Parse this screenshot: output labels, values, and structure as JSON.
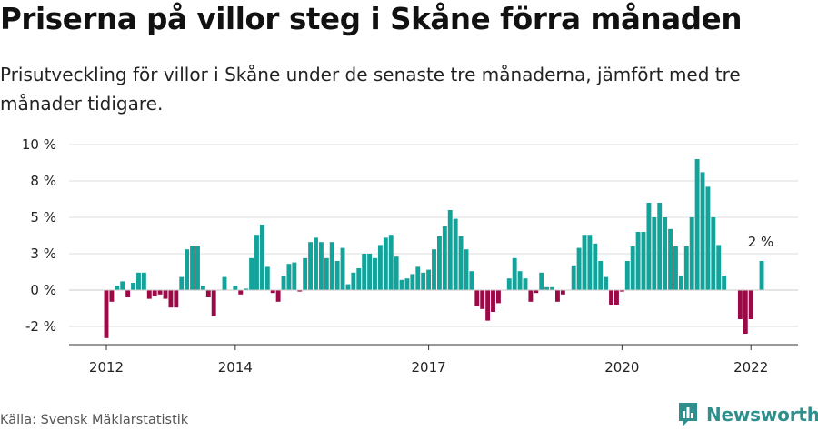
{
  "title": "Priserna på villor steg i Skåne förra månaden",
  "subtitle": "Prisutveckling för villor i Skåne under de senaste tre månaderna, jämfört med tre månader tidigare.",
  "source": "Källa: Svensk Mäklarstatistik",
  "brand": "Newsworthy",
  "colors": {
    "positive": "#13a39b",
    "negative": "#9b0a47",
    "brand": "#2f8f8c"
  },
  "chart_data": {
    "type": "bar",
    "title": "Priserna på villor steg i Skåne förra månaden",
    "subtitle": "Prisutveckling för villor i Skåne under de senaste tre månaderna, jämfört med tre månader tidigare.",
    "xlabel": "",
    "ylabel": "",
    "ylim": [
      -3.75,
      10
    ],
    "yticks": [
      -2.5,
      0,
      2.5,
      5,
      7.5,
      10
    ],
    "ytick_labels": [
      "-2 %",
      "0 %",
      "3 %",
      "5 %",
      "8 %",
      "10 %"
    ],
    "xticks": [
      {
        "label": "2012",
        "index": 0
      },
      {
        "label": "2014",
        "index": 24
      },
      {
        "label": "2017",
        "index": 60
      },
      {
        "label": "2020",
        "index": 96
      },
      {
        "label": "2022",
        "index": 120
      }
    ],
    "grid": true,
    "annotation": {
      "text": "2 %",
      "index": 122
    },
    "start_period": "2012-01",
    "values": [
      -3.3,
      -0.8,
      0.3,
      0.6,
      -0.5,
      0.5,
      1.2,
      1.2,
      -0.6,
      -0.4,
      -0.3,
      -0.6,
      -1.2,
      -1.2,
      0.9,
      2.8,
      3.0,
      3.0,
      0.3,
      -0.5,
      -1.8,
      0,
      0.9,
      0,
      0.3,
      -0.3,
      0.1,
      2.2,
      3.8,
      4.5,
      1.6,
      -0.2,
      -0.8,
      1.0,
      1.8,
      1.9,
      -0.1,
      2.2,
      3.3,
      3.6,
      3.3,
      2.2,
      3.3,
      2.0,
      2.9,
      0.4,
      1.2,
      1.5,
      2.5,
      2.5,
      2.2,
      3.1,
      3.6,
      3.8,
      2.3,
      0.7,
      0.8,
      1.1,
      1.6,
      1.2,
      1.4,
      2.8,
      3.7,
      4.4,
      5.5,
      4.9,
      3.7,
      2.8,
      1.3,
      -1.1,
      -1.3,
      -2.1,
      -1.5,
      -0.9,
      0,
      0.8,
      2.2,
      1.3,
      0.8,
      -0.8,
      -0.2,
      1.2,
      0.2,
      0.2,
      -0.8,
      -0.3,
      0,
      1.7,
      2.9,
      3.8,
      3.8,
      3.2,
      2.0,
      0.9,
      -1.0,
      -1.0,
      -0.1,
      2.0,
      3.0,
      4.0,
      4.0,
      6.0,
      5.0,
      6.0,
      5.0,
      4.2,
      3.0,
      1.0,
      3.0,
      5.0,
      9.0,
      8.1,
      7.1,
      5.0,
      3.1,
      1.0,
      0,
      0,
      -2.0,
      -3.0,
      -2.0,
      0,
      2.0
    ]
  }
}
